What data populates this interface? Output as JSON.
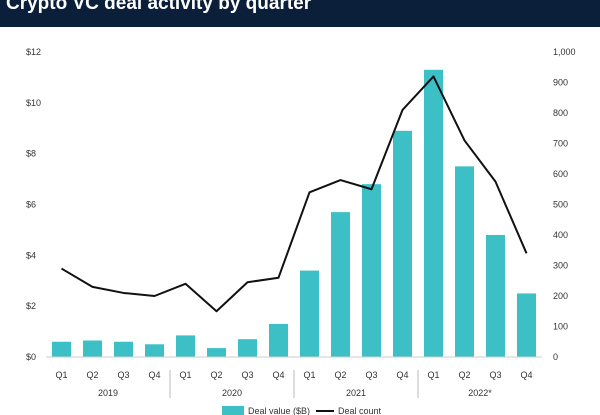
{
  "chart_data": {
    "type": "bar",
    "title": "Crypto VC deal activity by quarter",
    "categories": [
      "Q1",
      "Q2",
      "Q3",
      "Q4",
      "Q1",
      "Q2",
      "Q3",
      "Q4",
      "Q1",
      "Q2",
      "Q3",
      "Q4",
      "Q1",
      "Q2",
      "Q3",
      "Q4"
    ],
    "years": [
      {
        "label": "2019",
        "first": 0,
        "last": 3
      },
      {
        "label": "2020",
        "first": 4,
        "last": 7
      },
      {
        "label": "2021",
        "first": 8,
        "last": 11
      },
      {
        "label": "2022*",
        "first": 12,
        "last": 15
      }
    ],
    "series": [
      {
        "name": "Deal value ($B)",
        "kind": "bar",
        "axis": "left",
        "values": [
          0.6,
          0.65,
          0.6,
          0.5,
          0.85,
          0.35,
          0.7,
          1.3,
          3.4,
          5.7,
          6.8,
          8.9,
          11.3,
          7.5,
          4.8,
          2.5
        ]
      },
      {
        "name": "Deal count",
        "kind": "line",
        "axis": "right",
        "values": [
          290,
          230,
          210,
          200,
          240,
          150,
          245,
          260,
          540,
          580,
          550,
          810,
          920,
          710,
          575,
          340
        ]
      }
    ],
    "left_axis": {
      "min": 0,
      "max": 12,
      "ticks": [
        "$0",
        "$2",
        "$4",
        "$6",
        "$8",
        "$10",
        "$12"
      ]
    },
    "right_axis": {
      "min": 0,
      "max": 1000,
      "ticks": [
        "0",
        "100",
        "200",
        "300",
        "400",
        "500",
        "600",
        "700",
        "800",
        "900",
        "1,000"
      ]
    },
    "legend": [
      "Deal value ($B)",
      "Deal count"
    ],
    "colors": {
      "bar": "#3dbfc6",
      "line": "#111111",
      "title_bg": "#0b1f3a",
      "title_text": "#ffffff"
    }
  }
}
